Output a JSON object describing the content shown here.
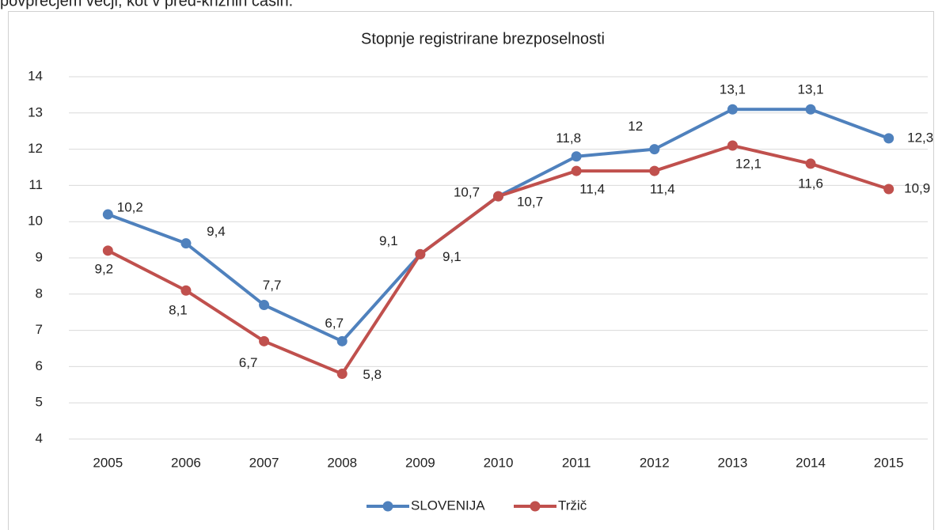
{
  "context_text": "povprečjem večji, kot v pred-kriznih časih.",
  "chart_data": {
    "type": "line",
    "title": "Stopnje registrirane brezposelnosti",
    "categories": [
      "2005",
      "2006",
      "2007",
      "2008",
      "2009",
      "2010",
      "2011",
      "2012",
      "2013",
      "2014",
      "2015"
    ],
    "series": [
      {
        "name": "SLOVENIJA",
        "color": "#4f81bd",
        "values": [
          10.2,
          9.4,
          7.7,
          6.7,
          9.1,
          10.7,
          11.8,
          12,
          13.1,
          13.1,
          12.3
        ],
        "value_labels": [
          "10,2",
          "9,4",
          "7,7",
          "6,7",
          "9,1",
          "10,7",
          "11,8",
          "12",
          "13,1",
          "13,1",
          "12,3"
        ]
      },
      {
        "name": "Tržič",
        "color": "#c0504d",
        "values": [
          9.2,
          8.1,
          6.7,
          5.8,
          9.1,
          10.7,
          11.4,
          11.4,
          12.1,
          11.6,
          10.9
        ],
        "value_labels": [
          "9,2",
          "8,1",
          "6,7",
          "5,8",
          "9,1",
          "10,7",
          "11,4",
          "11,4",
          "12,1",
          "11,6",
          "10,9"
        ]
      }
    ],
    "ylim": [
      4,
      14
    ],
    "yticks": [
      4,
      5,
      6,
      7,
      8,
      9,
      10,
      11,
      12,
      13,
      14
    ],
    "grid": true,
    "legend": "bottom"
  }
}
